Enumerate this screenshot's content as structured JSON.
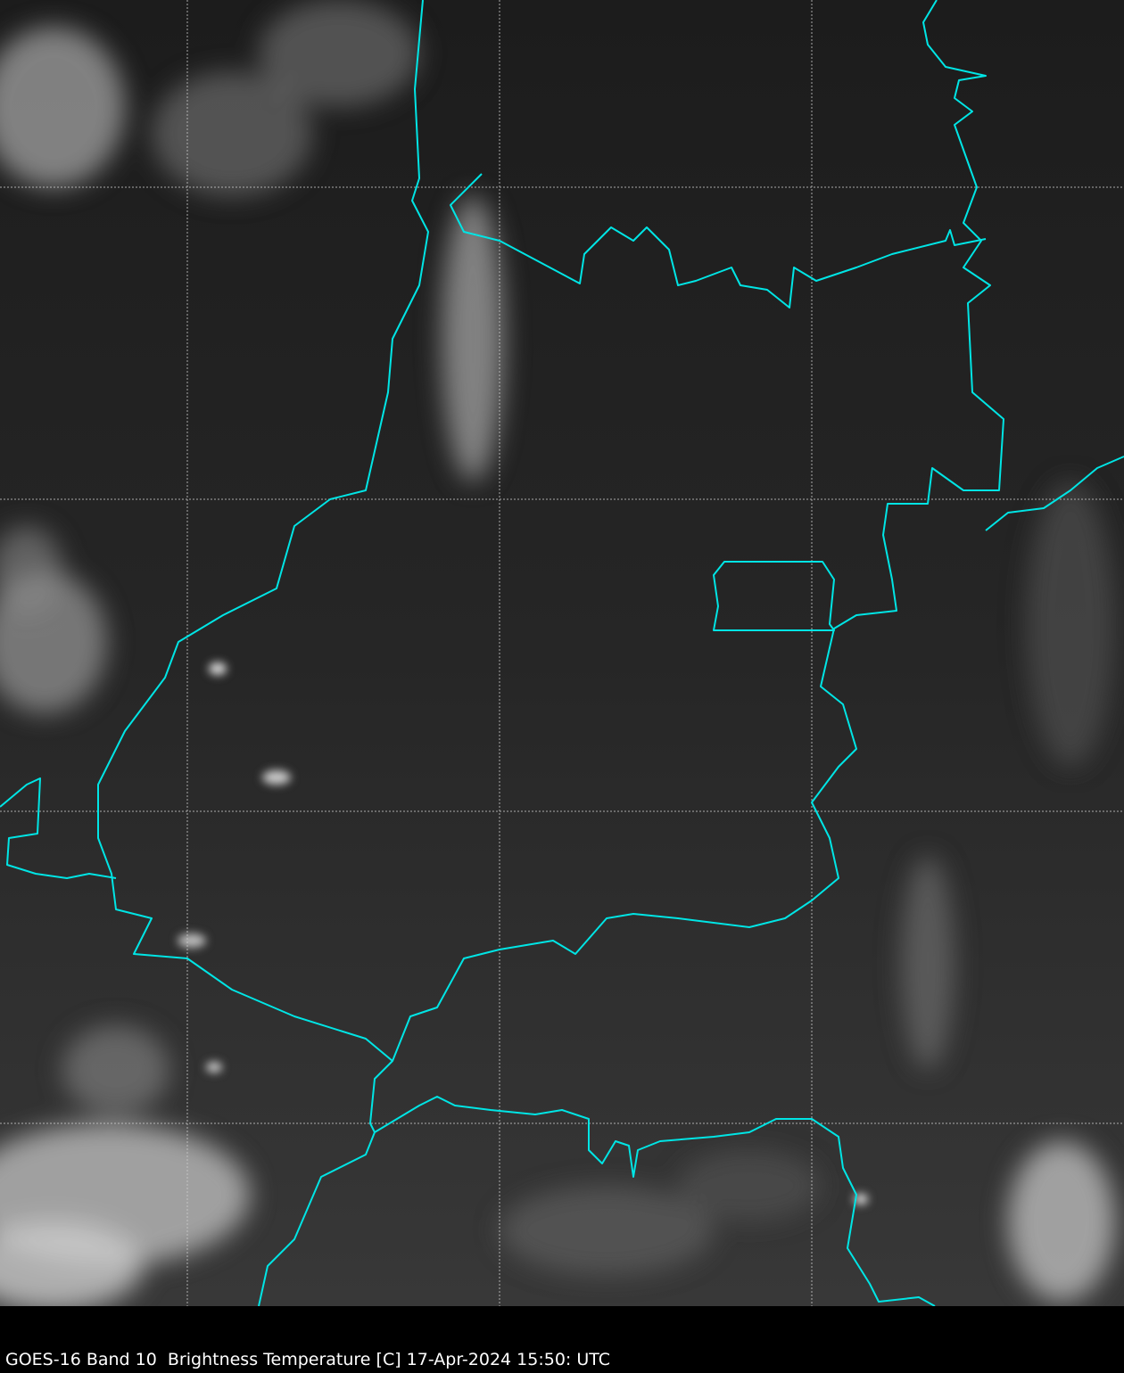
{
  "caption": "GOES-16 Band 10  Brightness Temperature [C] 17-Apr-2024 15:50: UTC",
  "colors": {
    "background": "#2a2a2a",
    "borders": "#00e5e5",
    "federal_district": "#00e5e5",
    "grid": "#cccccc",
    "caption_text": "#ffffff"
  },
  "map": {
    "colormap": "grayscale",
    "grid": true,
    "grid_style": "dashed"
  }
}
